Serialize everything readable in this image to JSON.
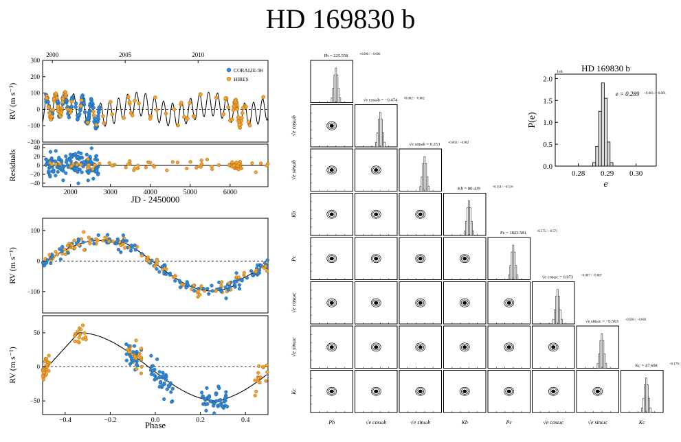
{
  "title": "HD 169830 b",
  "colors": {
    "coralie": "#2f88d6",
    "hires": "#f2a22a",
    "hist_fill": "#dcdcdc"
  },
  "chart_data": [
    {
      "type": "scatter",
      "id": "rv_timeseries",
      "top_axis_ticks": [
        "2000",
        "2005",
        "2010"
      ],
      "top_axis_tick_jd": [
        1544,
        3370,
        5197
      ],
      "ylabel": "RV (m s⁻¹)",
      "ylim": [
        -200,
        300
      ],
      "yticks": [
        "300",
        "200",
        "100",
        "0",
        "−100",
        "−200"
      ],
      "ytick_values": [
        300,
        200,
        100,
        0,
        -100,
        -200
      ],
      "xlim": [
        1300,
        6950
      ],
      "legend": [
        "CORALIE-98",
        "HIRES"
      ],
      "legend_position": "top-right",
      "model_period_b": 225.56,
      "model_period_c": 1823.6,
      "model_K_b": 80.44,
      "model_K_c": 47.6
    },
    {
      "type": "scatter",
      "id": "residuals",
      "ylabel": "Residuals",
      "xlabel": "JD - 2450000",
      "xticks": [
        "2000",
        "3000",
        "4000",
        "5000",
        "6000"
      ],
      "xtick_values": [
        2000,
        3000,
        4000,
        5000,
        6000
      ],
      "yticks": [
        "40",
        "20",
        "0",
        "−20",
        "−40"
      ],
      "ytick_values": [
        40,
        20,
        0,
        -20,
        -40
      ],
      "ylim": [
        -48,
        48
      ]
    },
    {
      "type": "scatter",
      "id": "phase_b",
      "ylabel": "RV (m s⁻¹)",
      "ylim": [
        -170,
        140
      ],
      "yticks": [
        "100",
        "0",
        "−100"
      ],
      "ytick_values": [
        100,
        0,
        -100
      ],
      "xlim": [
        -0.5,
        0.5
      ]
    },
    {
      "type": "scatter",
      "id": "phase_c",
      "ylabel": "RV (m s⁻¹)",
      "xlabel": "Phase",
      "xlim": [
        -0.5,
        0.5
      ],
      "xticks": [
        "−0.4",
        "−0.2",
        "0.0",
        "0.2",
        "0.4"
      ],
      "xtick_values": [
        -0.4,
        -0.2,
        0.0,
        0.2,
        0.4
      ],
      "yticks": [
        "50",
        "0",
        "−50"
      ],
      "ytick_values": [
        50,
        0,
        -50
      ],
      "ylim": [
        -70,
        75
      ]
    },
    {
      "type": "bar",
      "id": "ecc_hist",
      "title": "HD 169830 b",
      "xlabel": "e",
      "ylabel": "P(e)",
      "scale_label": "1e6",
      "xticks": [
        "0.28",
        "0.29",
        "0.30"
      ],
      "xtick_values": [
        0.28,
        0.29,
        0.3
      ],
      "yticks": [
        "0.0",
        "0.5",
        "1.0",
        "1.5",
        "2.0"
      ],
      "ytick_values": [
        0,
        0.5,
        1.0,
        1.5,
        2.0
      ],
      "xlim": [
        0.272,
        0.307
      ],
      "ylim": [
        0,
        2.1
      ],
      "annotation": "e = 0.289",
      "annotation_err": "+0.001 / −0.001",
      "bin_centers": [
        0.2855,
        0.2865,
        0.2875,
        0.2885,
        0.2895,
        0.2905,
        0.2915
      ],
      "values": [
        0.08,
        0.45,
        1.25,
        1.9,
        1.55,
        0.55,
        0.08
      ]
    },
    {
      "type": "corner",
      "id": "corner_plot",
      "parameters": [
        "P_b",
        "√e cos ω_b",
        "√e sin ω_b",
        "K_b",
        "P_c",
        "√e cos ω_c",
        "√e sin ω_c",
        "K_c"
      ],
      "axis_labels": [
        "Pb",
        "√e cosωb",
        "√e sinωb",
        "Kb",
        "Pc",
        "√e cosωc",
        "√e sinωc",
        "Kc"
      ],
      "diag_titles": [
        {
          "label": "Pb = 225.558",
          "err": "+0.006 / −0.006"
        },
        {
          "label": "√e cosωb = −0.474",
          "err": "+0.002 / −0.002"
        },
        {
          "label": "√e sinωb = 0.253",
          "err": "+0.002 / −0.002"
        },
        {
          "label": "Kb = 80.439",
          "err": "+0.114 / −0.116"
        },
        {
          "label": "Pc = 1823.581",
          "err": "+0.575 / −0.571"
        },
        {
          "label": "√e cosωc = 0.073",
          "err": "+0.007 / −0.007"
        },
        {
          "label": "√e sinωc = −0.563",
          "err": "+0.003 / −0.003"
        },
        {
          "label": "Kc = 47.608",
          "err": "+0.170 / −0.164"
        }
      ],
      "medians": [
        225.558,
        -0.474,
        0.253,
        80.439,
        1823.581,
        0.073,
        -0.563,
        47.608
      ]
    }
  ]
}
